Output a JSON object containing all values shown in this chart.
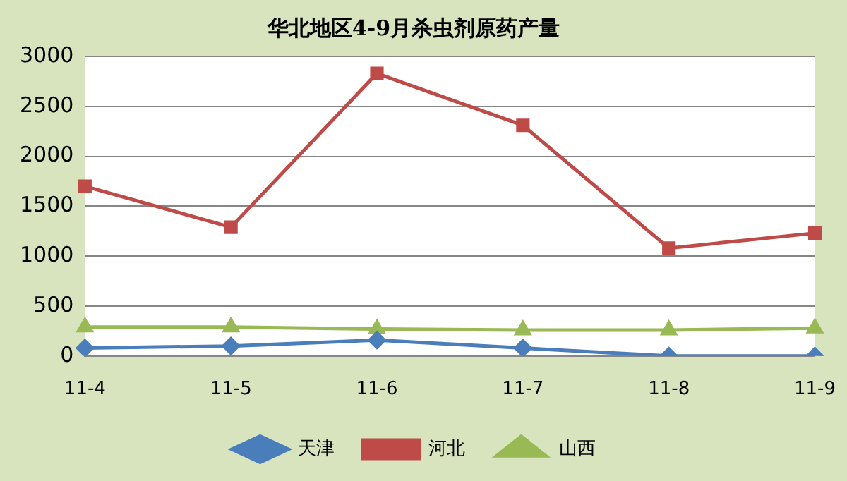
{
  "chart_data": {
    "type": "line",
    "title": "华北地区4-9月杀虫剂原药产量",
    "categories": [
      "11-4",
      "11-5",
      "11-6",
      "11-7",
      "11-8",
      "11-9"
    ],
    "series": [
      {
        "name": "天津",
        "color": "#4a7ebb",
        "marker": "diamond",
        "values": [
          80,
          100,
          160,
          80,
          0,
          0
        ]
      },
      {
        "name": "河北",
        "color": "#be4b48",
        "marker": "square",
        "values": [
          1700,
          1290,
          2830,
          2310,
          1080,
          1230
        ]
      },
      {
        "name": "山西",
        "color": "#98b954",
        "marker": "triangle",
        "values": [
          290,
          290,
          270,
          260,
          260,
          280
        ]
      }
    ],
    "ylim": [
      0,
      3000
    ],
    "yticks": [
      0,
      500,
      1000,
      1500,
      2000,
      2500,
      3000
    ],
    "grid": "y",
    "legend": "bottom"
  }
}
